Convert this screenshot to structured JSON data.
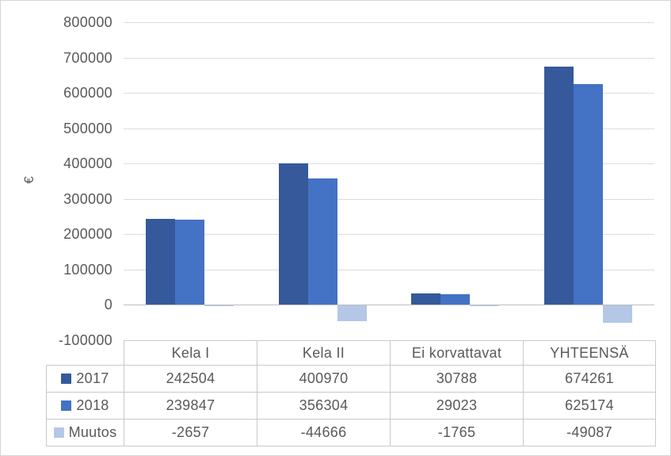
{
  "chart_data": {
    "type": "bar",
    "title": "",
    "ylabel": "€",
    "xlabel": "",
    "categories": [
      "Kela I",
      "Kela II",
      "Ei korvattavat",
      "YHTEENSÄ"
    ],
    "series": [
      {
        "name": "2017",
        "color": "#35599a",
        "values": [
          242504,
          400970,
          30788,
          674261
        ]
      },
      {
        "name": "2018",
        "color": "#4472c4",
        "values": [
          239847,
          356304,
          29023,
          625174
        ]
      },
      {
        "name": "Muutos",
        "color": "#b4c7e7",
        "values": [
          -2657,
          -44666,
          -1765,
          -49087
        ]
      }
    ],
    "ylim": [
      -100000,
      800000
    ],
    "yticks": [
      800000,
      700000,
      600000,
      500000,
      400000,
      300000,
      200000,
      100000,
      0,
      -100000
    ],
    "grid": true,
    "legend_position": "table-left"
  },
  "colors": {
    "gridline": "#dcdcdc",
    "zero_axis": "#bfbfbf",
    "table_border": "#c9c9c9",
    "text": "#595959",
    "background": "#ffffff"
  }
}
